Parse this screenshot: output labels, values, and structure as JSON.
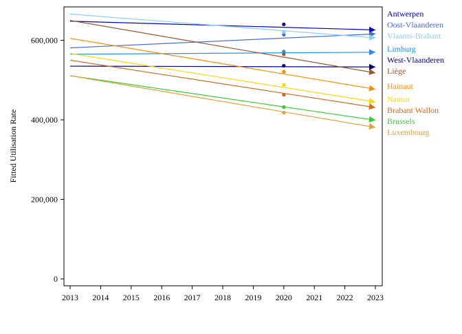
{
  "chart_data": {
    "type": "line",
    "ylabel": "Fitted Utilisation Rate",
    "xlim": [
      2013,
      2023
    ],
    "ylim": [
      0,
      650000
    ],
    "x_ticks": [
      2013,
      2014,
      2015,
      2016,
      2017,
      2018,
      2019,
      2020,
      2021,
      2022,
      2023
    ],
    "x_tick_labels": [
      "2013",
      "2014",
      "2015",
      "2016",
      "2017",
      "2018",
      "2019",
      "2020",
      "2021",
      "2022",
      "2023"
    ],
    "y_ticks": [
      0,
      200000,
      400000,
      600000
    ],
    "y_tick_labels": [
      "0",
      "200,000",
      "400,000",
      "600,000"
    ],
    "grid": false,
    "legend": "right",
    "series": [
      {
        "name": "Antwerpen",
        "color": "#0000cd",
        "x": [
          2013,
          2023
        ],
        "y": [
          648000,
          626000
        ],
        "marker": {
          "x": 2020,
          "y": 640000
        }
      },
      {
        "name": "Oost-Vlaanderen",
        "color": "#4169e1",
        "x": [
          2013,
          2023
        ],
        "y": [
          581000,
          616000
        ],
        "marker": {
          "x": 2020,
          "y": 614000
        }
      },
      {
        "name": "Vlaams-Brabant",
        "color": "#87cefa",
        "x": [
          2013,
          2023
        ],
        "y": [
          666000,
          606000
        ],
        "marker": {
          "x": 2020,
          "y": 621000
        }
      },
      {
        "name": "Limburg",
        "color": "#1e90ff",
        "x": [
          2013,
          2023
        ],
        "y": [
          565000,
          570000
        ],
        "marker": {
          "x": 2020,
          "y": 572000
        }
      },
      {
        "name": "West-Vlaanderen",
        "color": "#00008b",
        "x": [
          2013,
          2023
        ],
        "y": [
          535000,
          533000
        ],
        "marker": {
          "x": 2020,
          "y": 536000
        }
      },
      {
        "name": "Liège",
        "color": "#a0522d",
        "x": [
          2013,
          2023
        ],
        "y": [
          650000,
          518000
        ],
        "marker": {
          "x": 2020,
          "y": 565000
        }
      },
      {
        "name": "Hainaut",
        "color": "#ff8c00",
        "x": [
          2013,
          2023
        ],
        "y": [
          605000,
          477000
        ],
        "marker": {
          "x": 2020,
          "y": 521000
        }
      },
      {
        "name": "Namur",
        "color": "#ffd700",
        "x": [
          2013,
          2023
        ],
        "y": [
          567000,
          445000
        ],
        "marker": {
          "x": 2020,
          "y": 488000
        }
      },
      {
        "name": "Brabant Wallon",
        "color": "#d2691e",
        "x": [
          2013,
          2023
        ],
        "y": [
          550000,
          431000
        ],
        "marker": {
          "x": 2020,
          "y": 463000
        }
      },
      {
        "name": "Brussels",
        "color": "#32cd32",
        "x": [
          2013,
          2023
        ],
        "y": [
          511000,
          399000
        ],
        "marker": {
          "x": 2020,
          "y": 432000
        }
      },
      {
        "name": "Luxembourg",
        "color": "#e8a030",
        "x": [
          2013,
          2023
        ],
        "y": [
          511000,
          381000
        ],
        "marker": {
          "x": 2020,
          "y": 418000
        }
      }
    ]
  }
}
